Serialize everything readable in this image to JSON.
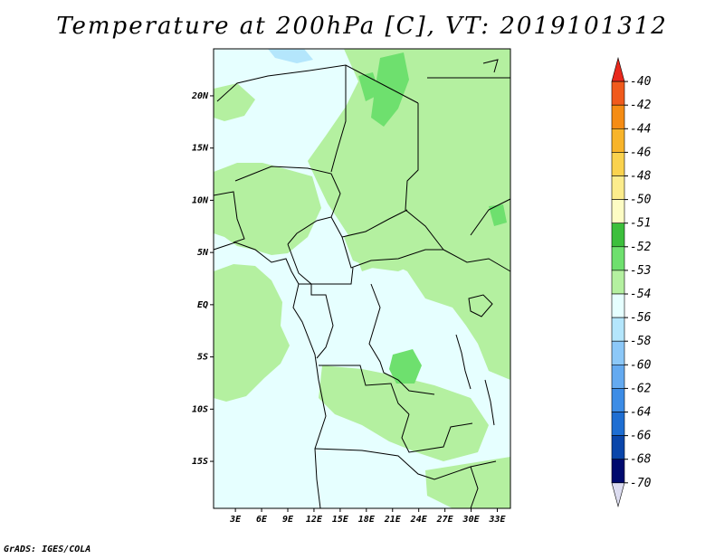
{
  "title": "Temperature at 200hPa [C], VT: 2019101312",
  "credit": "GrADS: IGES/COLA",
  "map": {
    "variable": "Temperature",
    "level": "200hPa",
    "units": "C",
    "valid_time": "2019101312",
    "lat_labels": [
      "20N",
      "15N",
      "10N",
      "5N",
      "EQ",
      "5S",
      "10S",
      "15S"
    ],
    "lat_values": [
      20,
      15,
      10,
      5,
      0,
      -5,
      -10,
      -15
    ],
    "lon_labels": [
      "3E",
      "6E",
      "9E",
      "12E",
      "15E",
      "18E",
      "21E",
      "24E",
      "27E",
      "30E",
      "33E"
    ],
    "lon_values": [
      3,
      6,
      9,
      12,
      15,
      18,
      21,
      24,
      27,
      30,
      33
    ],
    "lon_range": [
      0.5,
      34.5
    ],
    "lat_range": [
      -19.5,
      24.5
    ]
  },
  "colorbar": {
    "levels": [
      "-40",
      "-42",
      "-44",
      "-46",
      "-48",
      "-50",
      "-51",
      "-52",
      "-53",
      "-54",
      "-56",
      "-58",
      "-60",
      "-62",
      "-64",
      "-66",
      "-68",
      "-70"
    ],
    "colors": [
      "#e8281c",
      "#f05a1c",
      "#f58c14",
      "#f8b42a",
      "#fad24e",
      "#fcec8c",
      "#fdfcc4",
      "#3cbf3c",
      "#6ee06e",
      "#b4f0a0",
      "#e6ffff",
      "#b4e6fc",
      "#8cc8f8",
      "#64aaf0",
      "#3c8ce6",
      "#1e6ed2",
      "#0a46aa",
      "#000a6e",
      "#dcdcf0"
    ]
  },
  "colors": {
    "ocean": "#e6ffff",
    "band_53": "#b4f0a0",
    "band_52": "#6ee06e",
    "band_56": "#b4e6fc",
    "outline": "#000000"
  }
}
